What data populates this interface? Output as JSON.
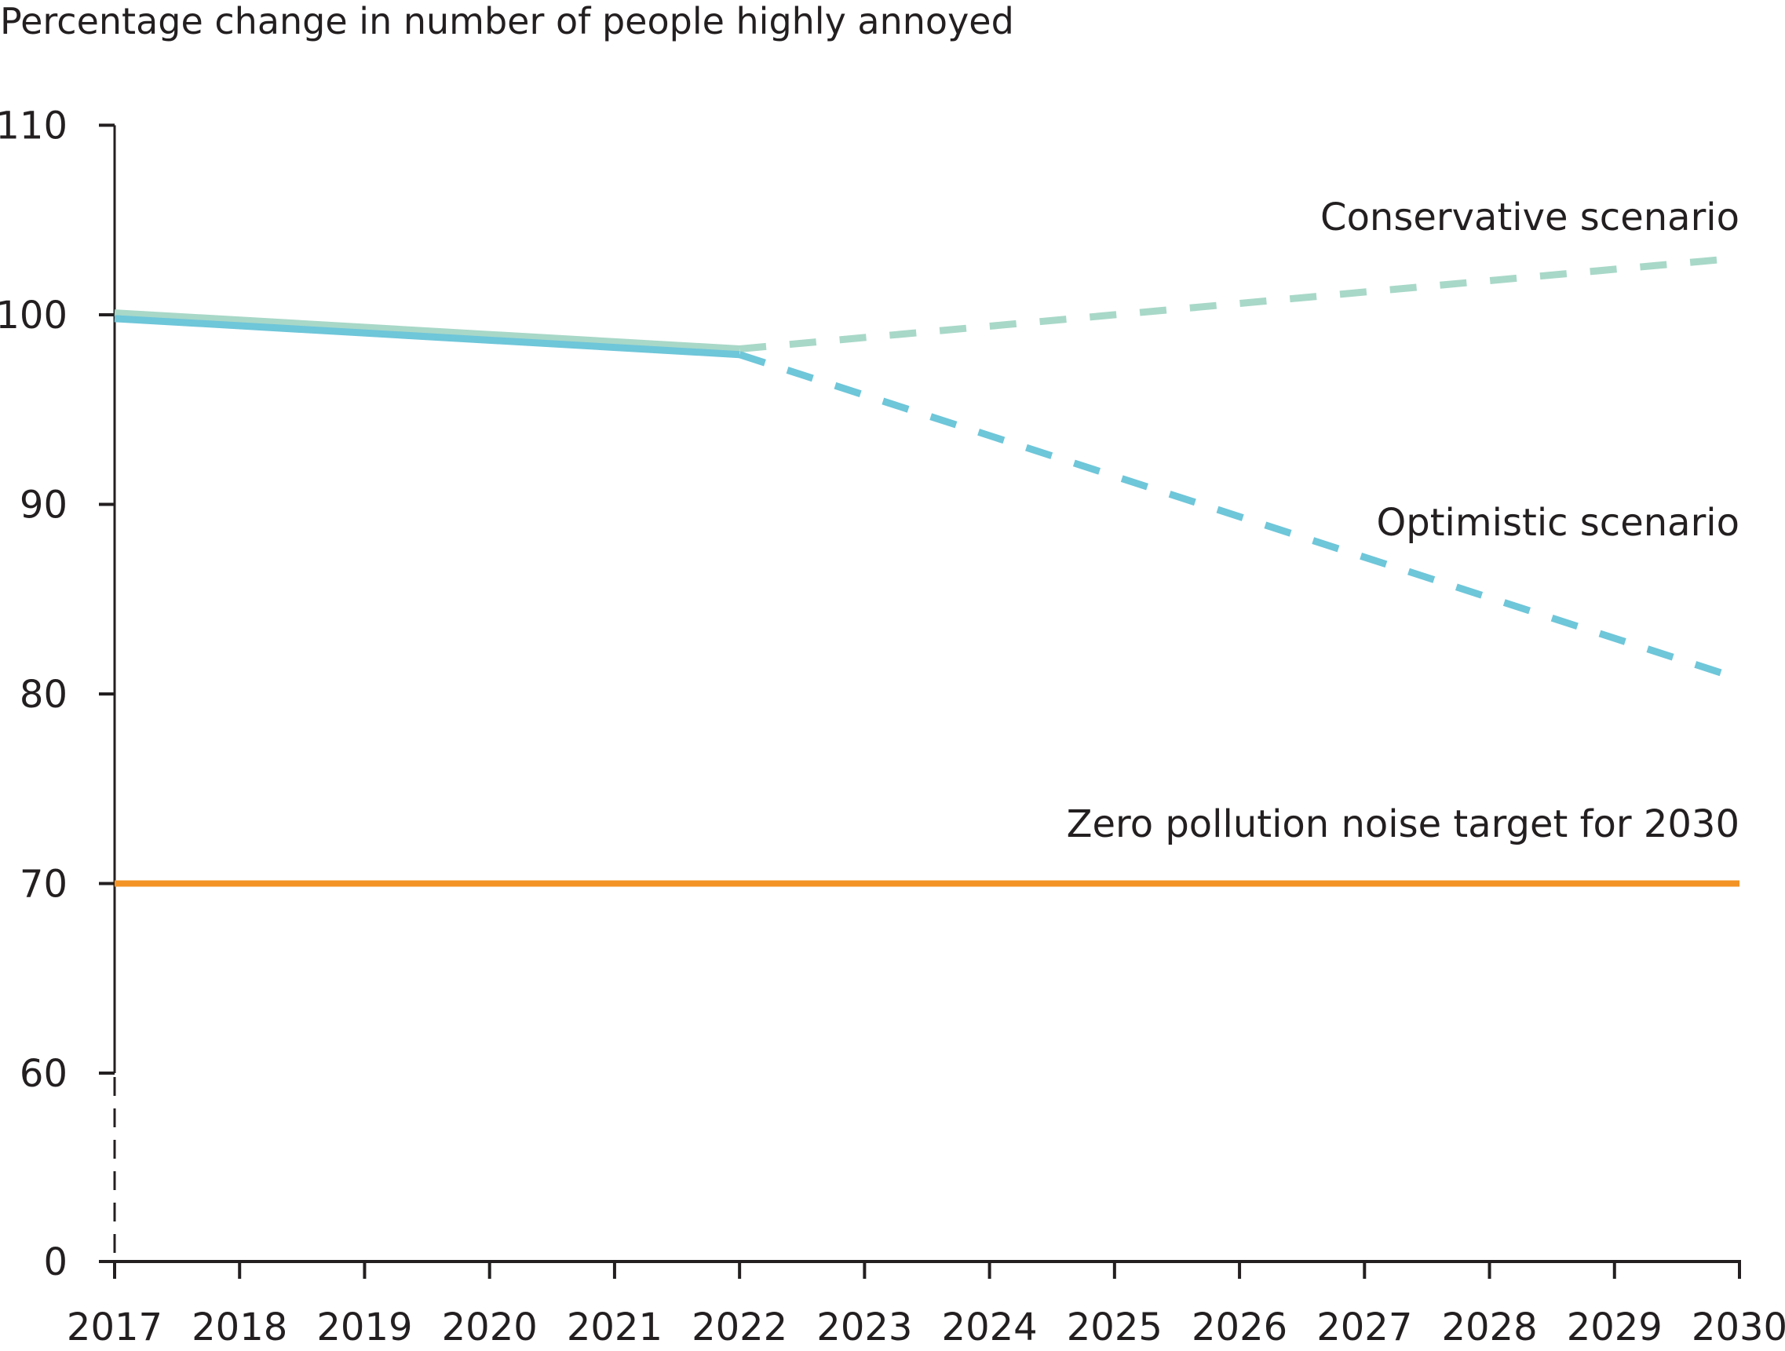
{
  "chart_data": {
    "type": "line",
    "title": "",
    "ylabel": "Percentage change in number of people highly annoyed",
    "xlabel": "",
    "x": [
      2017,
      2018,
      2019,
      2020,
      2021,
      2022,
      2023,
      2024,
      2025,
      2026,
      2027,
      2028,
      2029,
      2030
    ],
    "x_tick_labels": [
      "2017",
      "2018",
      "2019",
      "2020",
      "2021",
      "2022",
      "2023",
      "2024",
      "2025",
      "2026",
      "2027",
      "2028",
      "2029",
      "2030"
    ],
    "y_tick_labels": [
      "0",
      "60",
      "70",
      "80",
      "90",
      "100",
      "110"
    ],
    "y_ticks": [
      0,
      60,
      70,
      80,
      90,
      100,
      110
    ],
    "ylim": [
      0,
      110
    ],
    "y_axis_break": [
      0,
      60
    ],
    "grid": false,
    "legend": "none",
    "series": [
      {
        "name": "Conservative scenario",
        "color": "#a8d8c8",
        "historical": {
          "x": [
            2017,
            2022
          ],
          "y": [
            100.1,
            98.2
          ],
          "style": "solid"
        },
        "projection": {
          "x": [
            2022,
            2030
          ],
          "y": [
            98.2,
            103.0
          ],
          "style": "dashed"
        }
      },
      {
        "name": "Optimistic scenario",
        "color": "#6ec6d9",
        "historical": {
          "x": [
            2017,
            2022
          ],
          "y": [
            99.8,
            97.9
          ],
          "style": "solid"
        },
        "projection": {
          "x": [
            2022,
            2030
          ],
          "y": [
            97.9,
            80.8
          ],
          "style": "dashed"
        }
      },
      {
        "name": "Zero pollution noise target for 2030",
        "color": "#f39325",
        "x": [
          2017,
          2030
        ],
        "y": [
          70,
          70
        ],
        "style": "solid"
      }
    ],
    "annotations": [
      {
        "text": "Conservative scenario",
        "series": "Conservative scenario",
        "position": "above-right"
      },
      {
        "text": "Optimistic scenario",
        "series": "Optimistic scenario",
        "position": "above-right"
      },
      {
        "text": "Zero pollution noise target for 2030",
        "series": "Zero pollution noise target for 2030",
        "position": "above-right"
      }
    ]
  }
}
